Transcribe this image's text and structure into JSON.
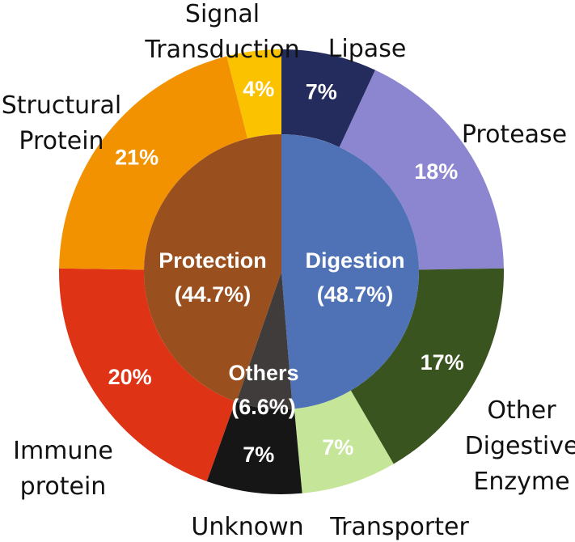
{
  "chart_data": {
    "type": "pie",
    "subtype": "nested-donut",
    "title": "",
    "outer_ring": [
      {
        "name": "Lipase",
        "value": 7,
        "label": "7%",
        "color": "#232c5c",
        "label_color": "#ffffff"
      },
      {
        "name": "Protease",
        "value": 18,
        "label": "18%",
        "color": "#8b86cf",
        "label_color": "#ffffff"
      },
      {
        "name": "Other Digestive Enzyme",
        "value": 17,
        "label": "17%",
        "color": "#3a5420",
        "label_color": "#ffffff"
      },
      {
        "name": "Transporter",
        "value": 7,
        "label": "7%",
        "color": "#c5e599",
        "label_color": "#ffffff"
      },
      {
        "name": "Unknown",
        "value": 7,
        "label": "7%",
        "color": "#161616",
        "label_color": "#ffffff"
      },
      {
        "name": "Immune protein",
        "value": 20,
        "label": "20%",
        "color": "#df3316",
        "label_color": "#ffffff"
      },
      {
        "name": "Structural Protein",
        "value": 21,
        "label": "21%",
        "color": "#f39200",
        "label_color": "#ffffff"
      },
      {
        "name": "Signal Transduction",
        "value": 4,
        "label": "4%",
        "color": "#fbc200",
        "label_color": "#ffffff"
      }
    ],
    "inner_ring": [
      {
        "name": "Digestion",
        "value": 48.7,
        "label": "(48.7%)",
        "color": "#4f72b6"
      },
      {
        "name": "Others",
        "value": 6.6,
        "label": "(6.6%)",
        "color": "#403c3c"
      },
      {
        "name": "Protection",
        "value": 44.7,
        "label": "(44.7%)",
        "color": "#9a4f1e"
      }
    ],
    "outer_labels": [
      {
        "key": "lipase",
        "lines": [
          "Lipase"
        ]
      },
      {
        "key": "protease",
        "lines": [
          "Protease"
        ]
      },
      {
        "key": "other-digestive-enzyme",
        "lines": [
          "Other",
          "Digestive",
          "Enzyme"
        ]
      },
      {
        "key": "transporter",
        "lines": [
          "Transporter"
        ]
      },
      {
        "key": "unknown",
        "lines": [
          "Unknown"
        ]
      },
      {
        "key": "immune-protein",
        "lines": [
          "Immune",
          "protein"
        ]
      },
      {
        "key": "structural-protein",
        "lines": [
          "Structural",
          "Protein"
        ]
      },
      {
        "key": "signal-transduction",
        "lines": [
          "Signal",
          "Transduction"
        ]
      }
    ],
    "legend": "none",
    "grid": false
  }
}
